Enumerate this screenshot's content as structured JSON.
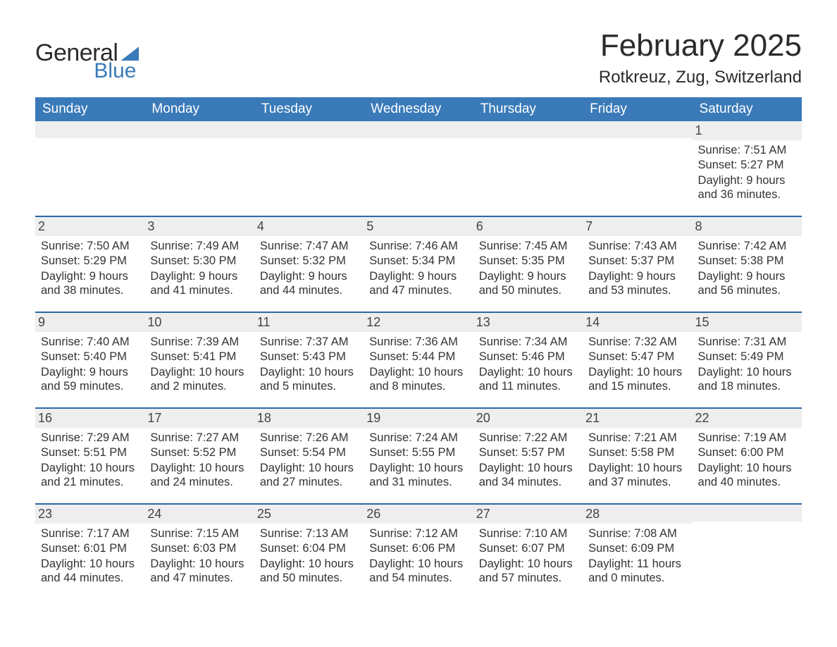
{
  "brand": {
    "word1": "General",
    "word2": "Blue"
  },
  "title": "February 2025",
  "location": "Rotkreuz, Zug, Switzerland",
  "colors": {
    "brand_blue": "#3a7ab8",
    "row_sep": "#2b6aa6",
    "daynum_bg": "#eeeeee",
    "text": "#333333",
    "background": "#ffffff"
  },
  "layout": {
    "columns": 7,
    "rows": 5
  },
  "day_headers": [
    "Sunday",
    "Monday",
    "Tuesday",
    "Wednesday",
    "Thursday",
    "Friday",
    "Saturday"
  ],
  "labels": {
    "sunrise": "Sunrise:",
    "sunset": "Sunset:",
    "daylight": "Daylight:"
  },
  "weeks": [
    [
      null,
      null,
      null,
      null,
      null,
      null,
      {
        "n": "1",
        "sunrise": "7:51 AM",
        "sunset": "5:27 PM",
        "daylight": "9 hours and 36 minutes."
      }
    ],
    [
      {
        "n": "2",
        "sunrise": "7:50 AM",
        "sunset": "5:29 PM",
        "daylight": "9 hours and 38 minutes."
      },
      {
        "n": "3",
        "sunrise": "7:49 AM",
        "sunset": "5:30 PM",
        "daylight": "9 hours and 41 minutes."
      },
      {
        "n": "4",
        "sunrise": "7:47 AM",
        "sunset": "5:32 PM",
        "daylight": "9 hours and 44 minutes."
      },
      {
        "n": "5",
        "sunrise": "7:46 AM",
        "sunset": "5:34 PM",
        "daylight": "9 hours and 47 minutes."
      },
      {
        "n": "6",
        "sunrise": "7:45 AM",
        "sunset": "5:35 PM",
        "daylight": "9 hours and 50 minutes."
      },
      {
        "n": "7",
        "sunrise": "7:43 AM",
        "sunset": "5:37 PM",
        "daylight": "9 hours and 53 minutes."
      },
      {
        "n": "8",
        "sunrise": "7:42 AM",
        "sunset": "5:38 PM",
        "daylight": "9 hours and 56 minutes."
      }
    ],
    [
      {
        "n": "9",
        "sunrise": "7:40 AM",
        "sunset": "5:40 PM",
        "daylight": "9 hours and 59 minutes."
      },
      {
        "n": "10",
        "sunrise": "7:39 AM",
        "sunset": "5:41 PM",
        "daylight": "10 hours and 2 minutes."
      },
      {
        "n": "11",
        "sunrise": "7:37 AM",
        "sunset": "5:43 PM",
        "daylight": "10 hours and 5 minutes."
      },
      {
        "n": "12",
        "sunrise": "7:36 AM",
        "sunset": "5:44 PM",
        "daylight": "10 hours and 8 minutes."
      },
      {
        "n": "13",
        "sunrise": "7:34 AM",
        "sunset": "5:46 PM",
        "daylight": "10 hours and 11 minutes."
      },
      {
        "n": "14",
        "sunrise": "7:32 AM",
        "sunset": "5:47 PM",
        "daylight": "10 hours and 15 minutes."
      },
      {
        "n": "15",
        "sunrise": "7:31 AM",
        "sunset": "5:49 PM",
        "daylight": "10 hours and 18 minutes."
      }
    ],
    [
      {
        "n": "16",
        "sunrise": "7:29 AM",
        "sunset": "5:51 PM",
        "daylight": "10 hours and 21 minutes."
      },
      {
        "n": "17",
        "sunrise": "7:27 AM",
        "sunset": "5:52 PM",
        "daylight": "10 hours and 24 minutes."
      },
      {
        "n": "18",
        "sunrise": "7:26 AM",
        "sunset": "5:54 PM",
        "daylight": "10 hours and 27 minutes."
      },
      {
        "n": "19",
        "sunrise": "7:24 AM",
        "sunset": "5:55 PM",
        "daylight": "10 hours and 31 minutes."
      },
      {
        "n": "20",
        "sunrise": "7:22 AM",
        "sunset": "5:57 PM",
        "daylight": "10 hours and 34 minutes."
      },
      {
        "n": "21",
        "sunrise": "7:21 AM",
        "sunset": "5:58 PM",
        "daylight": "10 hours and 37 minutes."
      },
      {
        "n": "22",
        "sunrise": "7:19 AM",
        "sunset": "6:00 PM",
        "daylight": "10 hours and 40 minutes."
      }
    ],
    [
      {
        "n": "23",
        "sunrise": "7:17 AM",
        "sunset": "6:01 PM",
        "daylight": "10 hours and 44 minutes."
      },
      {
        "n": "24",
        "sunrise": "7:15 AM",
        "sunset": "6:03 PM",
        "daylight": "10 hours and 47 minutes."
      },
      {
        "n": "25",
        "sunrise": "7:13 AM",
        "sunset": "6:04 PM",
        "daylight": "10 hours and 50 minutes."
      },
      {
        "n": "26",
        "sunrise": "7:12 AM",
        "sunset": "6:06 PM",
        "daylight": "10 hours and 54 minutes."
      },
      {
        "n": "27",
        "sunrise": "7:10 AM",
        "sunset": "6:07 PM",
        "daylight": "10 hours and 57 minutes."
      },
      {
        "n": "28",
        "sunrise": "7:08 AM",
        "sunset": "6:09 PM",
        "daylight": "11 hours and 0 minutes."
      },
      null
    ]
  ]
}
